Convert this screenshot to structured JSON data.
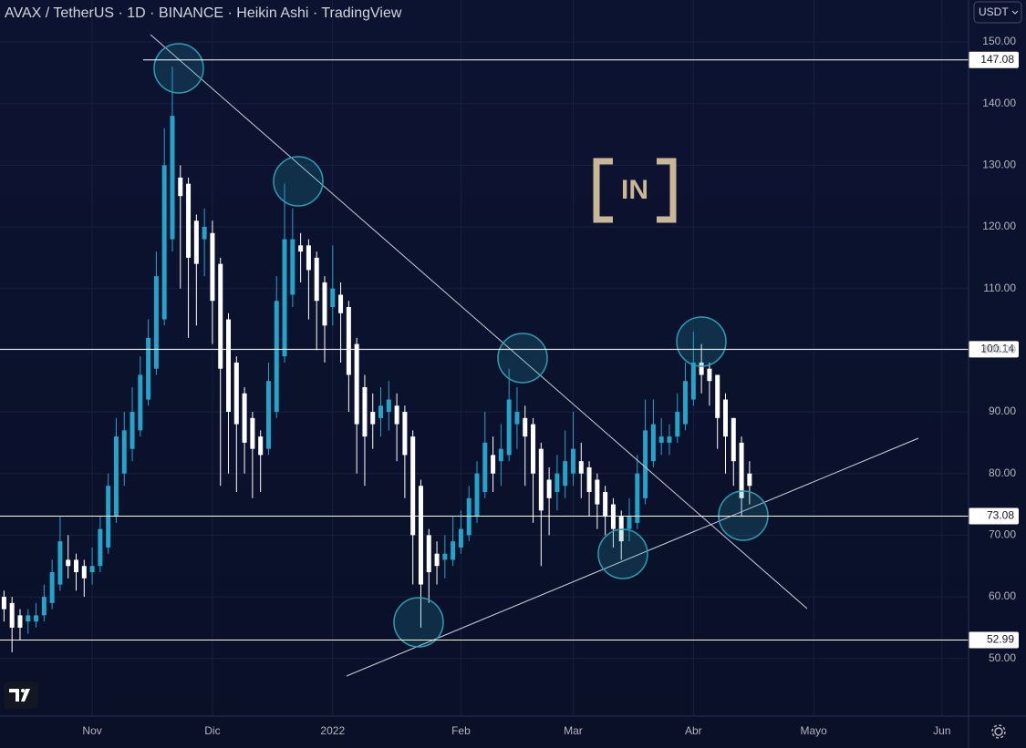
{
  "chart_data": {
    "type": "candlestick",
    "title": "AVAX / TetherUS · 1D · BINANCE · Heikin Ashi · TradingView",
    "currency": "USDT",
    "logo": "IN",
    "up_color": "#26a3c9",
    "down_color": "#ffffff",
    "categories": [
      null,
      null,
      null,
      null,
      null,
      null,
      null,
      null,
      null,
      null,
      null,
      "Nov",
      null,
      null,
      null,
      null,
      null,
      null,
      null,
      null,
      null,
      null,
      null,
      null,
      null,
      null,
      "Dic",
      null,
      null,
      null,
      null,
      null,
      null,
      null,
      null,
      null,
      null,
      null,
      null,
      null,
      null,
      "2022",
      null,
      null,
      null,
      null,
      null,
      null,
      null,
      null,
      null,
      null,
      null,
      null,
      null,
      null,
      null,
      "Feb",
      null,
      null,
      null,
      null,
      null,
      null,
      null,
      null,
      null,
      null,
      null,
      null,
      null,
      "Mar",
      null,
      null,
      null,
      null,
      null,
      null,
      null,
      null,
      null,
      null,
      null,
      null,
      null,
      null,
      "Abr",
      null,
      null,
      null,
      null,
      null,
      null,
      null,
      null,
      null,
      null,
      null,
      null,
      null,
      null,
      "Mayo",
      null,
      null,
      null,
      null,
      null,
      null,
      null,
      null,
      null,
      null,
      null,
      null,
      null,
      null,
      null,
      "Jun",
      null,
      null
    ],
    "ohlc": [
      [
        60,
        61,
        56,
        58
      ],
      [
        59,
        60,
        51,
        55
      ],
      [
        57,
        58,
        53,
        55
      ],
      [
        56,
        58,
        54,
        57
      ],
      [
        56,
        59,
        55,
        57
      ],
      [
        57,
        62,
        56,
        60
      ],
      [
        59,
        66,
        58,
        64
      ],
      [
        62,
        73,
        61,
        69
      ],
      [
        66,
        70,
        63,
        65
      ],
      [
        66,
        67,
        61,
        64
      ],
      [
        65,
        66,
        60,
        63
      ],
      [
        64,
        68,
        62,
        65
      ],
      [
        65,
        73,
        64,
        71
      ],
      [
        68,
        80,
        67,
        78
      ],
      [
        73,
        89,
        72,
        86
      ],
      [
        80,
        90,
        78,
        87
      ],
      [
        84,
        94,
        82,
        90
      ],
      [
        87,
        99,
        86,
        96
      ],
      [
        92,
        105,
        91,
        102
      ],
      [
        97,
        116,
        96,
        112
      ],
      [
        105,
        136,
        104,
        130
      ],
      [
        118,
        146,
        116,
        138
      ],
      [
        128,
        130,
        110,
        125
      ],
      [
        127,
        128,
        102,
        115
      ],
      [
        121,
        122,
        104,
        114
      ],
      [
        118,
        123,
        112,
        120
      ],
      [
        119,
        121,
        101,
        108
      ],
      [
        114,
        115,
        78,
        97
      ],
      [
        105,
        106,
        80,
        90
      ],
      [
        98,
        99,
        77,
        88
      ],
      [
        93,
        94,
        80,
        85
      ],
      [
        89,
        90,
        76,
        84
      ],
      [
        86,
        87,
        77,
        83
      ],
      [
        84,
        98,
        83,
        95
      ],
      [
        90,
        112,
        89,
        108
      ],
      [
        99,
        127,
        98,
        118
      ],
      [
        109,
        123,
        107,
        118
      ],
      [
        117,
        119,
        111,
        116
      ],
      [
        117,
        118,
        105,
        113
      ],
      [
        115,
        116,
        100,
        108
      ],
      [
        111,
        112,
        98,
        104
      ],
      [
        107,
        117,
        104,
        110
      ],
      [
        109,
        111,
        98,
        106
      ],
      [
        107,
        108,
        90,
        96
      ],
      [
        101,
        102,
        80,
        88
      ],
      [
        94,
        96,
        78,
        86
      ],
      [
        90,
        93,
        84,
        88
      ],
      [
        89,
        94,
        86,
        91
      ],
      [
        90,
        95,
        87,
        92
      ],
      [
        91,
        93,
        82,
        88
      ],
      [
        90,
        91,
        76,
        83
      ],
      [
        86,
        87,
        62,
        70
      ],
      [
        78,
        79,
        55,
        62
      ],
      [
        70,
        71,
        59,
        64
      ],
      [
        67,
        69,
        62,
        65
      ],
      [
        66,
        70,
        63,
        67
      ],
      [
        66,
        73,
        65,
        69
      ],
      [
        68,
        74,
        67,
        71
      ],
      [
        70,
        78,
        69,
        76
      ],
      [
        73,
        82,
        72,
        80
      ],
      [
        77,
        90,
        76,
        85
      ],
      [
        83,
        86,
        77,
        80
      ],
      [
        82,
        88,
        78,
        84
      ],
      [
        83,
        97,
        82,
        92
      ],
      [
        88,
        94,
        84,
        90
      ],
      [
        89,
        91,
        78,
        86
      ],
      [
        88,
        89,
        72,
        80
      ],
      [
        84,
        85,
        65,
        74
      ],
      [
        79,
        81,
        70,
        76
      ],
      [
        77,
        83,
        74,
        80
      ],
      [
        78,
        87,
        76,
        82
      ],
      [
        80,
        90,
        78,
        84
      ],
      [
        82,
        85,
        76,
        80
      ],
      [
        81,
        82,
        73,
        77
      ],
      [
        79,
        80,
        71,
        75
      ],
      [
        77,
        78,
        70,
        73
      ],
      [
        75,
        76,
        68,
        71
      ],
      [
        73,
        74,
        66,
        69
      ],
      [
        71,
        76,
        69,
        73
      ],
      [
        72,
        83,
        71,
        80
      ],
      [
        76,
        92,
        75,
        87
      ],
      [
        82,
        92,
        81,
        88
      ],
      [
        85,
        89,
        83,
        86
      ],
      [
        85,
        88,
        83,
        86
      ],
      [
        86,
        93,
        85,
        90
      ],
      [
        88,
        98,
        87,
        95
      ],
      [
        92,
        103,
        91,
        98
      ],
      [
        98,
        101,
        93,
        96
      ],
      [
        97,
        98,
        91,
        95
      ],
      [
        96,
        96,
        84,
        89
      ],
      [
        92,
        93,
        80,
        86
      ],
      [
        89,
        89,
        78,
        82
      ],
      [
        85,
        86,
        73,
        76
      ],
      [
        80,
        82,
        75,
        78
      ],
      null,
      null,
      null,
      null,
      null,
      null,
      null,
      null,
      null,
      null,
      null,
      null,
      null,
      null,
      null,
      null,
      null,
      null,
      null,
      null,
      null,
      null,
      null,
      null,
      null,
      null
    ],
    "hlines": [
      147.08,
      100.14,
      73.08,
      52.99
    ],
    "ylim": [
      40.8,
      156.8
    ],
    "yticks": [
      {
        "value": 50,
        "label": "50.00"
      },
      {
        "value": 60,
        "label": "60.00"
      },
      {
        "value": 70,
        "label": "70.00"
      },
      {
        "value": 80,
        "label": "80.00"
      },
      {
        "value": 90,
        "label": "90.00"
      },
      {
        "value": 100,
        "label": "100.00"
      },
      {
        "value": 110,
        "label": "110.00"
      },
      {
        "value": 120,
        "label": "120.00"
      },
      {
        "value": 130,
        "label": "130.00"
      },
      {
        "value": 140,
        "label": "140.00"
      },
      {
        "value": 150,
        "label": "150.00"
      }
    ],
    "grid": true
  }
}
